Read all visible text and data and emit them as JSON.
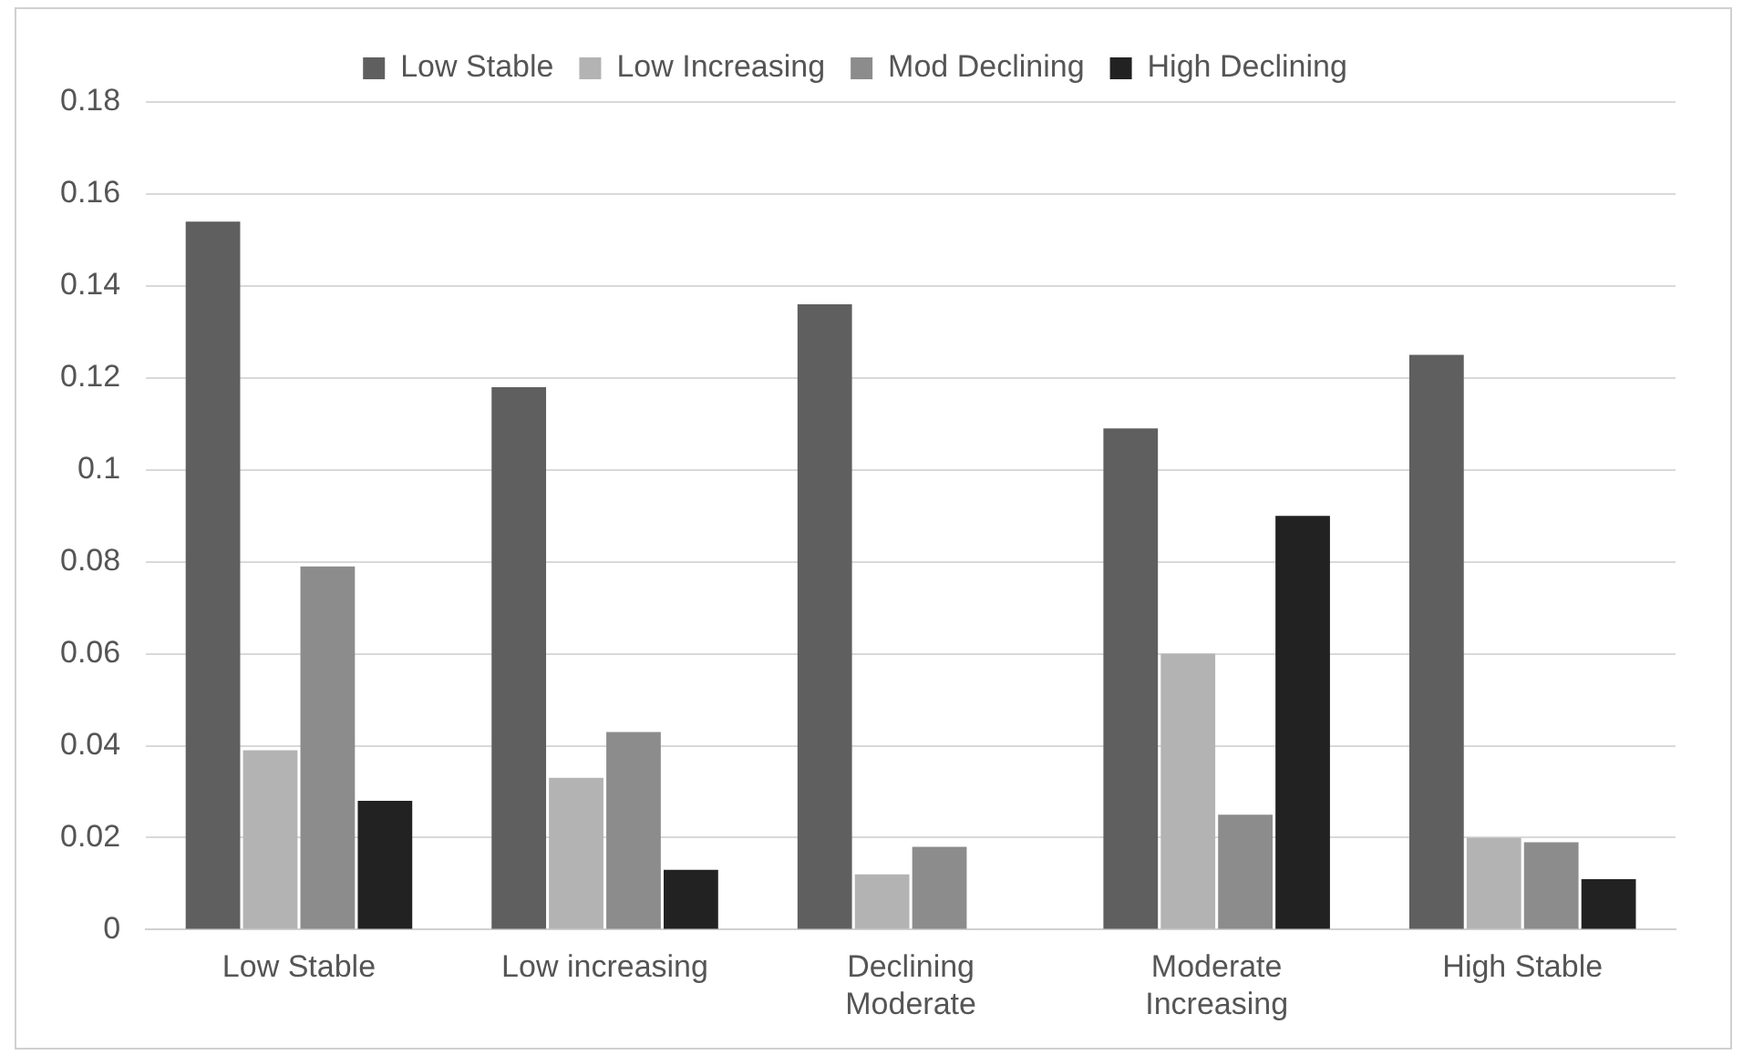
{
  "chart_data": {
    "type": "bar",
    "categories": [
      "Low Stable",
      "Low increasing",
      "Declining Moderate",
      "Moderate Increasing",
      "High Stable"
    ],
    "series": [
      {
        "name": "Low Stable",
        "color": "#5f5f5f",
        "values": [
          0.154,
          0.118,
          0.136,
          0.109,
          0.125
        ]
      },
      {
        "name": "Low Increasing",
        "color": "#b3b3b3",
        "values": [
          0.039,
          0.033,
          0.012,
          0.06,
          0.02
        ]
      },
      {
        "name": "Mod Declining",
        "color": "#8c8c8c",
        "values": [
          0.079,
          0.043,
          0.018,
          0.025,
          0.019
        ]
      },
      {
        "name": "High Declining",
        "color": "#222222",
        "values": [
          0.028,
          0.013,
          0,
          0.09,
          0.011
        ]
      }
    ],
    "ylim": [
      0,
      0.18
    ],
    "yticks": [
      0,
      0.02,
      0.04,
      0.06,
      0.08,
      0.1,
      0.12,
      0.14,
      0.16,
      0.18
    ],
    "grid": "y",
    "legend": "top"
  }
}
